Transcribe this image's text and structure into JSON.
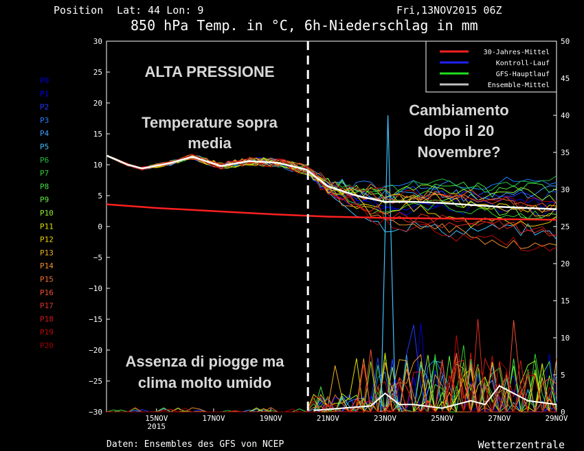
{
  "header": {
    "position_label": "Position",
    "lat_lon": "Lat: 44 Lon: 9",
    "run_date": "Fri,13NOV2015 06Z",
    "title": "850 hPa Temp. in °C, 6h-Niederschlag in mm"
  },
  "footer": {
    "source": "Daten: Ensembles des GFS von NCEP",
    "brand": "Wetterzentrale"
  },
  "annotations": {
    "high_pressure": "ALTA PRESSIONE",
    "temp_above_1": "Temperature sopra",
    "temp_above_2": "media",
    "change_1": "Cambiamento",
    "change_2": "dopo il 20",
    "change_3": "Novembre?",
    "no_rain_1": "Assenza di piogge ma",
    "no_rain_2": "clima molto umido"
  },
  "members": [
    "P0",
    "P1",
    "P2",
    "P3",
    "P4",
    "P5",
    "P6",
    "P7",
    "P8",
    "P9",
    "P10",
    "P11",
    "P12",
    "P13",
    "P14",
    "P15",
    "P16",
    "P17",
    "P18",
    "P19",
    "P20"
  ],
  "member_colors": [
    "#0000cc",
    "#0000ee",
    "#1e3cff",
    "#2080ff",
    "#3ca0ff",
    "#40c0ff",
    "#20c040",
    "#30d030",
    "#40e040",
    "#60f040",
    "#90f030",
    "#e0e000",
    "#f0d000",
    "#f0b020",
    "#f09030",
    "#f07030",
    "#f05030",
    "#e03020",
    "#d01818",
    "#c00808",
    "#a00000"
  ],
  "chart_data": {
    "type": "line",
    "title": "850 hPa Temp. in °C, 6h-Niederschlag in mm",
    "y_left": {
      "min": -30,
      "max": 30,
      "ticks": [
        "30",
        "25",
        "20",
        "15",
        "10",
        "5",
        "0",
        "−5",
        "−10",
        "−15",
        "−20",
        "−25",
        "−30"
      ]
    },
    "y_right": {
      "min": 0,
      "max": 50,
      "ticks": [
        "50",
        "45",
        "40",
        "35",
        "30",
        "25",
        "20",
        "15",
        "10",
        "5",
        "0"
      ]
    },
    "x_range_days": [
      13.25,
      29.0
    ],
    "x_ticks": [
      {
        "day": 15,
        "label": "15NOV",
        "sub": "2015"
      },
      {
        "day": 17,
        "label": "17NOV",
        "sub": ""
      },
      {
        "day": 19,
        "label": "19NOV",
        "sub": ""
      },
      {
        "day": 21,
        "label": "21NOV",
        "sub": ""
      },
      {
        "day": 23,
        "label": "23NOV",
        "sub": ""
      },
      {
        "day": 25,
        "label": "25NOV",
        "sub": ""
      },
      {
        "day": 27,
        "label": "27NOV",
        "sub": ""
      },
      {
        "day": 29,
        "label": "29NOV",
        "sub": ""
      }
    ],
    "marker_day": 20.3,
    "legend": [
      {
        "label": "30-Jahres-Mittel",
        "color": "#ff2020"
      },
      {
        "label": "Kontroll-Lauf",
        "color": "#2020ff"
      },
      {
        "label": "GFS-Hauptlauf",
        "color": "#20e020"
      },
      {
        "label": "Ensemble-Mittel",
        "color": "#c0c0c0"
      }
    ],
    "climate_mean": {
      "name": "30-Jahres-Mittel",
      "days": [
        13.25,
        15,
        17,
        19,
        21,
        23,
        25,
        27,
        29
      ],
      "values": [
        3.6,
        3.0,
        2.5,
        2.0,
        1.6,
        1.4,
        1.3,
        1.2,
        1.1
      ]
    },
    "ensemble_mean": {
      "name": "Ensemble-Mittel",
      "days": [
        13.25,
        14,
        14.5,
        15.5,
        16.25,
        17.25,
        18.25,
        19.25,
        20.25,
        21,
        22,
        23,
        24,
        25,
        26,
        27,
        28,
        29
      ],
      "values": [
        11.5,
        10.0,
        9.4,
        10.3,
        11.3,
        9.8,
        10.6,
        10.3,
        9.2,
        6.5,
        5.0,
        4.0,
        4.0,
        3.8,
        3.5,
        3.2,
        3.0,
        2.8
      ]
    },
    "precip_mean": {
      "days": [
        20.5,
        21.5,
        22.5,
        23,
        23.5,
        24,
        25,
        26,
        26.5,
        27,
        28,
        29
      ],
      "values": [
        0.2,
        0.5,
        0.8,
        2.5,
        1.0,
        1.0,
        0.5,
        1.5,
        1.0,
        3.5,
        1.5,
        1.0
      ]
    },
    "precip_peak": {
      "day": 23.1,
      "value": 40
    }
  }
}
